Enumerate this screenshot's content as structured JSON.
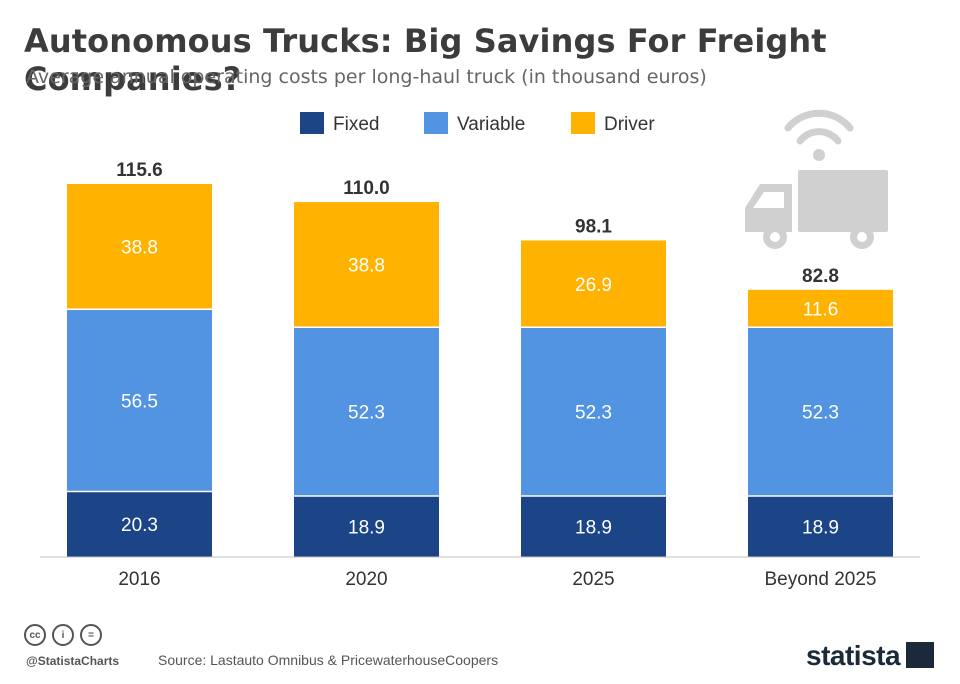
{
  "header": {
    "title": "Autonomous Trucks: Big Savings For Freight Companies?",
    "subtitle": "Average annual operating costs per long-haul truck (in thousand euros)"
  },
  "footer": {
    "handle": "@StatistaCharts",
    "source": "Source: Lastauto Omnibus & PricewaterhouseCoopers",
    "brand": "statista"
  },
  "chart_data": {
    "type": "bar",
    "stacked": true,
    "title": "Autonomous Trucks: Big Savings For Freight Companies?",
    "subtitle": "Average annual operating costs per long-haul truck (in thousand euros)",
    "categories": [
      "2016",
      "2020",
      "2025",
      "Beyond 2025"
    ],
    "series": [
      {
        "name": "Fixed",
        "color": "#1c4587",
        "values": [
          20.3,
          18.9,
          18.9,
          18.9
        ]
      },
      {
        "name": "Variable",
        "color": "#5294e2",
        "values": [
          56.5,
          52.3,
          52.3,
          52.3
        ]
      },
      {
        "name": "Driver",
        "color": "#ffb300",
        "values": [
          38.8,
          38.8,
          26.9,
          11.6
        ]
      }
    ],
    "value_labels": [
      [
        "20.3",
        "18.9",
        "18.9",
        "18.9"
      ],
      [
        "56.5",
        "52.3",
        "52.3",
        "52.3"
      ],
      [
        "38.8",
        "38.8",
        "26.9",
        "11.6"
      ]
    ],
    "totals": [
      115.6,
      110.0,
      98.1,
      82.8
    ],
    "total_labels": [
      "115.6",
      "110.0",
      "98.1",
      "82.8"
    ],
    "legend": "top-center",
    "ylim": [
      0,
      115.6
    ],
    "xlabel": "",
    "ylabel": ""
  }
}
